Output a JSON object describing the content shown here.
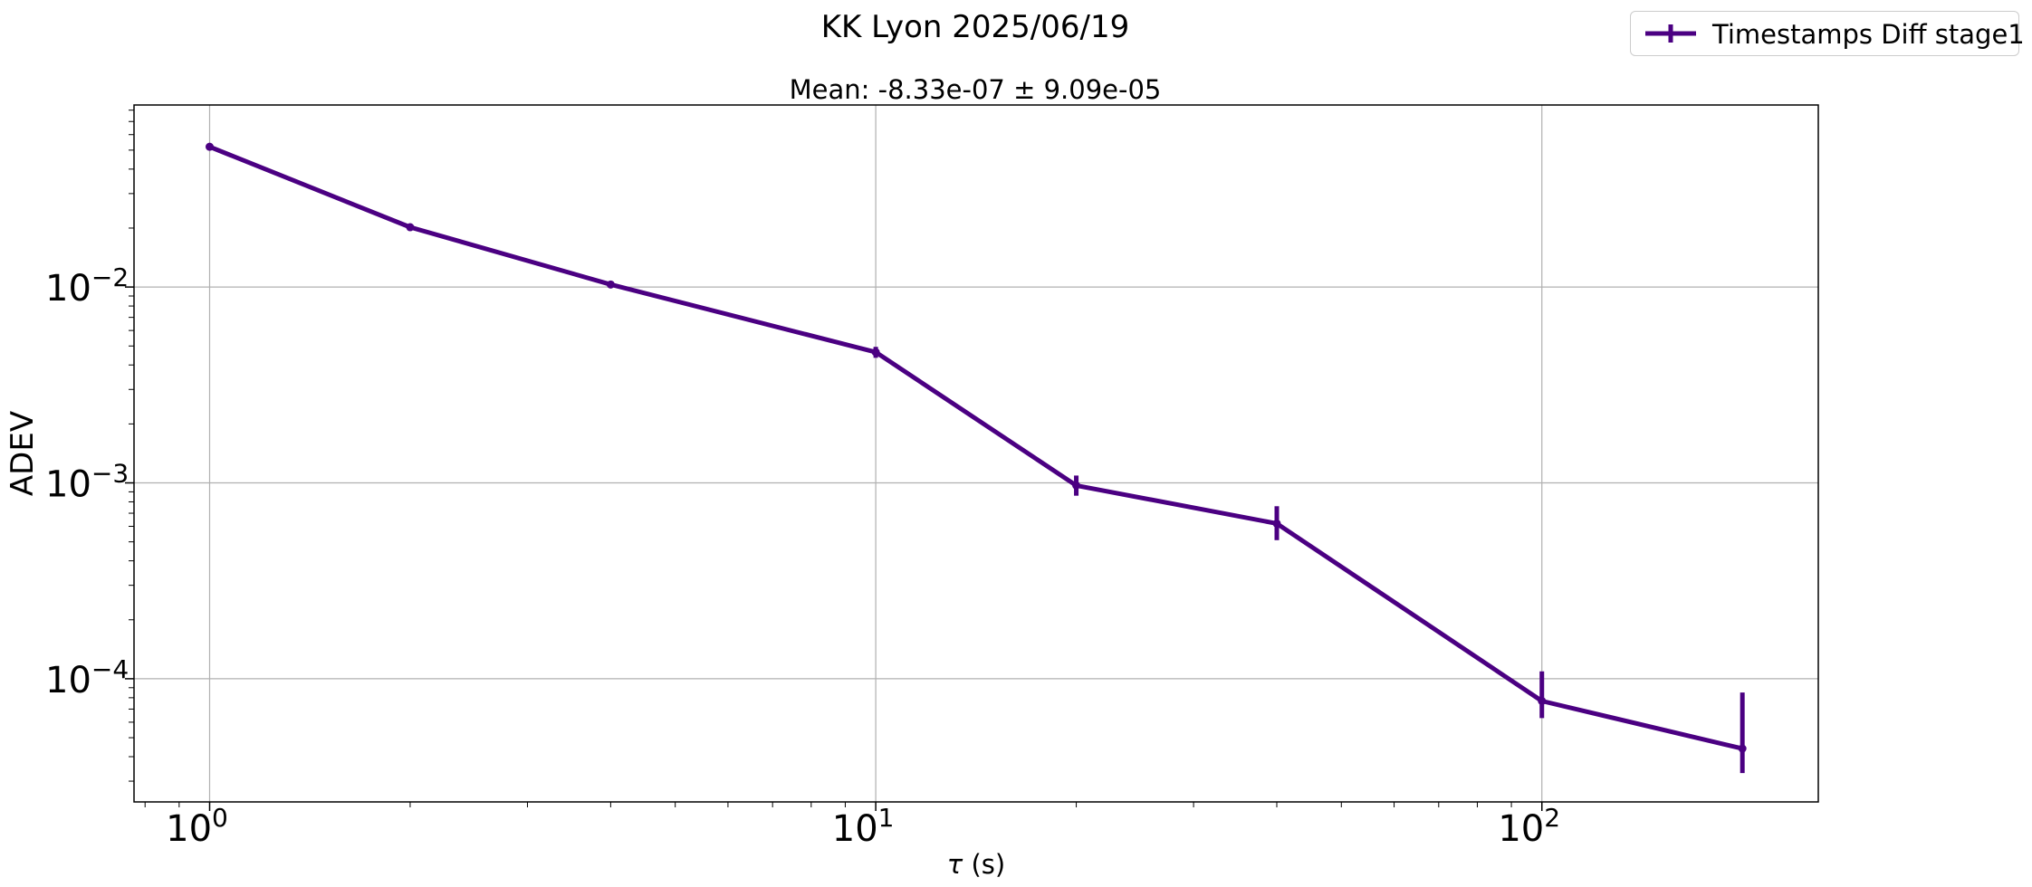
{
  "chart_data": {
    "type": "line",
    "title": "KK Lyon 2025/06/19",
    "subtitle": "Mean: -8.33e-07 ± 9.09e-05",
    "xlabel": "τ (s)",
    "ylabel": "ADEV",
    "xscale": "log",
    "yscale": "log",
    "xlim": [
      0.77,
      260
    ],
    "ylim": [
      2.35e-05,
      0.085
    ],
    "grid": true,
    "legend_position": "top-right (outside)",
    "x_ticks": [
      {
        "value": 1,
        "label": "10^0"
      },
      {
        "value": 10,
        "label": "10^1"
      },
      {
        "value": 100,
        "label": "10^2"
      }
    ],
    "y_ticks": [
      {
        "value": 0.0001,
        "label": "10^-4"
      },
      {
        "value": 0.001,
        "label": "10^-3"
      },
      {
        "value": 0.01,
        "label": "10^-2"
      }
    ],
    "series": [
      {
        "name": "Timestamps Diff stage1",
        "color": "#4b0082",
        "x": [
          1,
          2,
          4,
          10,
          20,
          40,
          100,
          200
        ],
        "y": [
          0.052,
          0.0202,
          0.0103,
          0.00465,
          0.00097,
          0.00062,
          7.7e-05,
          4.4e-05
        ],
        "yerr_low": [
          0.0005,
          0.0003,
          0.0002,
          0.0003,
          0.00011,
          0.00011,
          1.4e-05,
          1.1e-05
        ],
        "yerr_high": [
          0.0005,
          0.0003,
          0.0002,
          0.0003,
          0.00012,
          0.00014,
          3.2e-05,
          4.1e-05
        ]
      }
    ]
  }
}
